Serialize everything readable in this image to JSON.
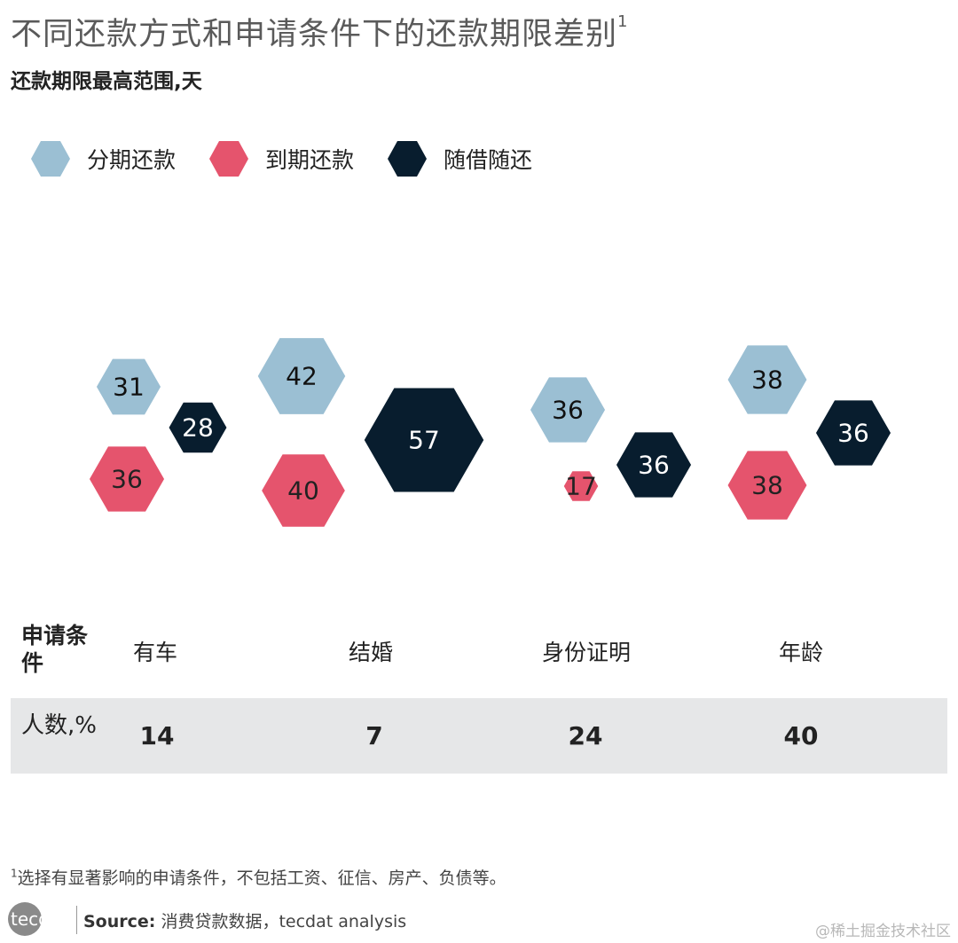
{
  "header": {
    "title": "不同还款方式和申请条件下的还款期限差别",
    "title_sup": "1",
    "subtitle": "还款期限最高范围,天"
  },
  "colors": {
    "series1": "#9bbfd3",
    "series2": "#e5546d",
    "series3": "#081d2e"
  },
  "chart_data": {
    "type": "bubble",
    "marker_shape": "hexagon",
    "title": "不同还款方式和申请条件下的还款期限差别",
    "ylabel": "还款期限最高范围,天",
    "categories": [
      "有车",
      "结婚",
      "身份证明",
      "年龄"
    ],
    "series": [
      {
        "name": "分期还款",
        "values": [
          31,
          42,
          36,
          38
        ]
      },
      {
        "name": "到期还款",
        "values": [
          36,
          40,
          17,
          38
        ]
      },
      {
        "name": "随借随还",
        "values": [
          28,
          57,
          36,
          36
        ]
      }
    ],
    "legend_position": "top-left"
  },
  "table": {
    "condition_header": "申请条件",
    "count_header": "人数,%",
    "conditions": [
      "有车",
      "结婚",
      "身份证明",
      "年龄"
    ],
    "counts": [
      "14",
      "7",
      "24",
      "40"
    ]
  },
  "footer": {
    "footnote_sup": "1",
    "footnote": "选择有显著影响的申请条件，不包括工资、征信、房产、负债等。",
    "logo_text": "tecdat",
    "source_label": "Source:",
    "source_text": "消费贷款数据，tecdat analysis",
    "watermark": "@稀土掘金技术社区"
  }
}
